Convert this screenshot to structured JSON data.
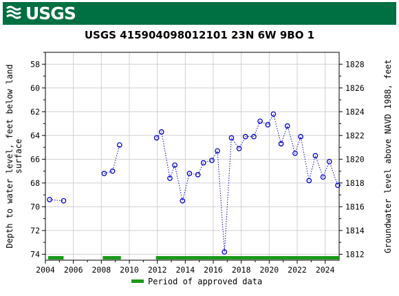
{
  "header": {
    "logo_text": "USGS",
    "banner_color": "#006f41"
  },
  "chart_data": {
    "type": "scatter",
    "title": "USGS 415904098012101 23N  6W 9BO  1",
    "ylabel_left": "Depth to water level, feet below land surface",
    "ylabel_left_lines": [
      "Depth to water level, feet below land",
      "surface"
    ],
    "ylabel_right": "Groundwater level above NAVD 1988, feet",
    "xlim": [
      2004,
      2025
    ],
    "ylim_left": [
      57,
      74.5
    ],
    "ylim_right": [
      1829,
      1811.5
    ],
    "y_inverted": true,
    "x_ticks": [
      2004,
      2006,
      2008,
      2010,
      2012,
      2014,
      2016,
      2018,
      2020,
      2022,
      2024
    ],
    "y_ticks_left": [
      58,
      60,
      62,
      64,
      66,
      68,
      70,
      72,
      74
    ],
    "y_ticks_right": [
      1828,
      1826,
      1824,
      1822,
      1820,
      1818,
      1816,
      1814,
      1812
    ],
    "grid": true,
    "series": [
      {
        "marker": "open-circle",
        "line": "dotted",
        "color": "#0000cc",
        "segments": [
          [
            [
              2004.3,
              69.4
            ],
            [
              2005.3,
              69.5
            ]
          ],
          [
            [
              2008.2,
              67.2
            ],
            [
              2008.8,
              67.0
            ],
            [
              2009.3,
              64.8
            ]
          ],
          [
            [
              2011.95,
              64.2
            ],
            [
              2012.3,
              63.7
            ],
            [
              2012.9,
              67.6
            ],
            [
              2013.25,
              66.5
            ],
            [
              2013.8,
              69.5
            ],
            [
              2014.3,
              67.2
            ],
            [
              2014.9,
              67.3
            ],
            [
              2015.3,
              66.3
            ],
            [
              2015.9,
              66.1
            ],
            [
              2016.3,
              65.3
            ],
            [
              2016.8,
              73.8
            ],
            [
              2017.3,
              64.2
            ],
            [
              2017.85,
              65.1
            ],
            [
              2018.3,
              64.1
            ],
            [
              2018.9,
              64.1
            ],
            [
              2019.35,
              62.8
            ],
            [
              2019.9,
              63.1
            ],
            [
              2020.3,
              62.2
            ],
            [
              2020.85,
              64.7
            ],
            [
              2021.3,
              63.2
            ],
            [
              2021.85,
              65.5
            ],
            [
              2022.25,
              64.1
            ],
            [
              2022.85,
              67.8
            ],
            [
              2023.3,
              65.7
            ],
            [
              2023.85,
              67.5
            ],
            [
              2024.3,
              66.2
            ],
            [
              2024.9,
              68.2
            ]
          ]
        ]
      }
    ],
    "approved_periods": [
      [
        2004.2,
        2005.3
      ],
      [
        2008.1,
        2009.4
      ],
      [
        2011.9,
        2025.0
      ]
    ],
    "approved_color": "#1a9a1a",
    "legend": {
      "label": "Period of approved data",
      "placement": "bottom-center"
    }
  }
}
